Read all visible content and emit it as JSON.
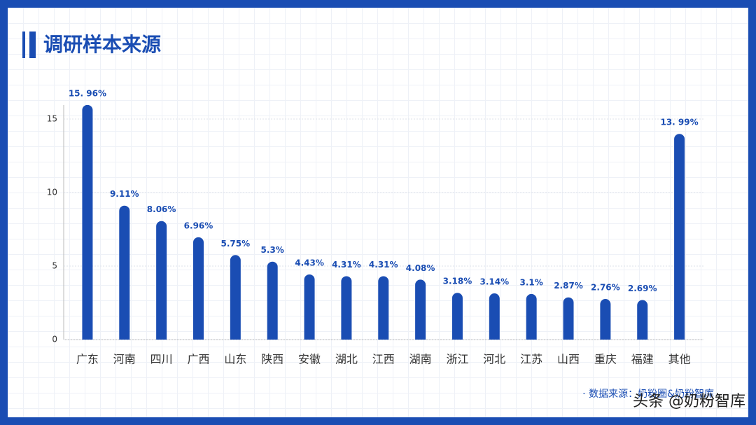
{
  "chart_data": {
    "type": "bar",
    "title": "调研样本来源",
    "categories": [
      "广东",
      "河南",
      "四川",
      "广西",
      "山东",
      "陕西",
      "安徽",
      "湖北",
      "江西",
      "湖南",
      "浙江",
      "河北",
      "江苏",
      "山西",
      "重庆",
      "福建",
      "其他"
    ],
    "values": [
      15.96,
      9.11,
      8.06,
      6.96,
      5.75,
      5.3,
      4.43,
      4.31,
      4.31,
      4.08,
      3.18,
      3.14,
      3.1,
      2.87,
      2.76,
      2.69,
      13.99
    ],
    "value_labels": [
      "15. 96%",
      "9.11%",
      "8.06%",
      "6.96%",
      "5.75%",
      "5.3%",
      "4.43%",
      "4.31%",
      "4.31%",
      "4.08%",
      "3.18%",
      "3.14%",
      "3.1%",
      "2.87%",
      "2.76%",
      "2.69%",
      "13. 99%"
    ],
    "color": "#1a4db3",
    "ylim": [
      0,
      16
    ],
    "yticks": [
      0,
      5,
      10,
      15
    ],
    "grid": true,
    "source": "· 数据来源：奶粉圈&奶粉智库",
    "watermark": "头条 @奶粉智库"
  }
}
